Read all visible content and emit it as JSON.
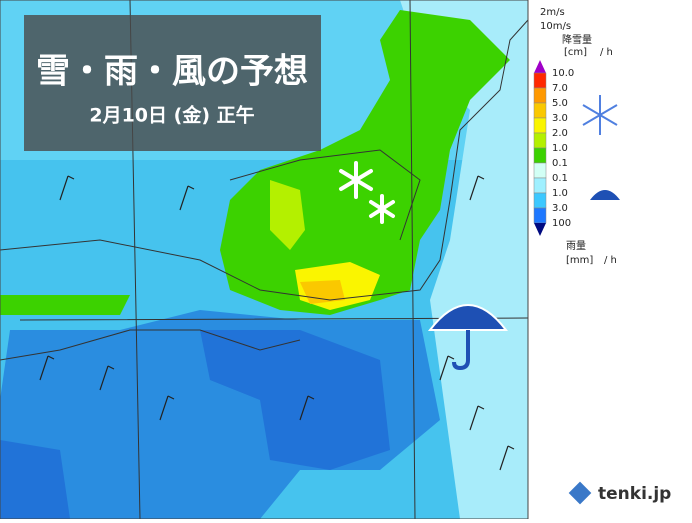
{
  "header": {
    "title": "雪・雨・風の予想",
    "subtitle": "2月10日 (金) 正午"
  },
  "legend": {
    "wind": [
      "2m/s",
      "10m/s"
    ],
    "snow_title": "降雪量",
    "snow_unit": "[cm]",
    "per_hour": "/ h",
    "snow_labels": [
      "10.0",
      "7.0",
      "5.0",
      "3.0",
      "2.0",
      "1.0",
      "0.1"
    ],
    "rain_labels": [
      "0.1",
      "1.0",
      "3.0",
      "100"
    ],
    "rain_title": "雨量",
    "rain_unit": "[mm]",
    "colors": [
      "#a000c8",
      "#ff2800",
      "#ff9900",
      "#fac800",
      "#faf500",
      "#b4f000",
      "#3cd200",
      "#d2fff5",
      "#a0f0ff",
      "#3cc8ff",
      "#1e78ff",
      "#000a80"
    ]
  },
  "logo": "tenki.jp"
}
